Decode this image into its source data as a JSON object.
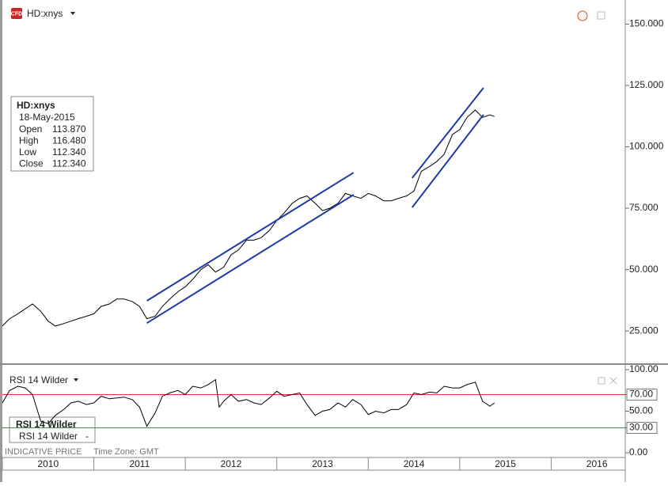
{
  "header": {
    "icon": "CFD",
    "symbol": "HD:xnys"
  },
  "info_box": {
    "title": "HD:xnys",
    "date": "18-May-2015",
    "rows": [
      [
        "Open",
        "113.870"
      ],
      [
        "High",
        "116.480"
      ],
      [
        "Low",
        "112.340"
      ],
      [
        "Close",
        "112.340"
      ]
    ]
  },
  "rsi_header": "RSI 14 Wilder",
  "rsi_box": {
    "title": "RSI 14 Wilder",
    "row": [
      "RSI 14 Wilder",
      "-"
    ]
  },
  "footer": {
    "price_note": "INDICATIVE PRICE",
    "time_zone": "Time Zone: GMT"
  },
  "chart_data": [
    {
      "type": "line",
      "color": "#000000",
      "x": [
        2010.0,
        2010.08,
        2010.17,
        2010.25,
        2010.33,
        2010.42,
        2010.5,
        2010.58,
        2010.67,
        2010.75,
        2010.83,
        2010.92,
        2011.0,
        2011.08,
        2011.17,
        2011.25,
        2011.33,
        2011.42,
        2011.5,
        2011.58,
        2011.67,
        2011.75,
        2011.83,
        2011.92,
        2012.0,
        2012.08,
        2012.17,
        2012.25,
        2012.33,
        2012.42,
        2012.5,
        2012.58,
        2012.67,
        2012.75,
        2012.83,
        2012.92,
        2013.0,
        2013.08,
        2013.17,
        2013.25,
        2013.33,
        2013.42,
        2013.5,
        2013.58,
        2013.67,
        2013.75,
        2013.83,
        2013.92,
        2014.0,
        2014.08,
        2014.17,
        2014.25,
        2014.33,
        2014.42,
        2014.5,
        2014.58,
        2014.67,
        2014.75,
        2014.83,
        2014.92,
        2015.0,
        2015.08,
        2015.17,
        2015.25,
        2015.33,
        2015.38
      ],
      "values": [
        27,
        30,
        32,
        34,
        36,
        33,
        29,
        27,
        28,
        29,
        30,
        31,
        32,
        35,
        36,
        38,
        38,
        37,
        35,
        30,
        31,
        35,
        38,
        41,
        43,
        46,
        50,
        52,
        49,
        51,
        56,
        58,
        62,
        62,
        63,
        66,
        70,
        73,
        77,
        79,
        80,
        77,
        74,
        75,
        77,
        81,
        80,
        79,
        81,
        80,
        78,
        78,
        79,
        80,
        82,
        90,
        92,
        94,
        97,
        105,
        107,
        112,
        115,
        112,
        113,
        112.34
      ],
      "xlim": [
        2010,
        2016.81
      ],
      "ylim": [
        11.5,
        159.8
      ],
      "yticks": [
        {
          "value": 25,
          "label": "25.000"
        },
        {
          "value": 50,
          "label": "50.000"
        },
        {
          "value": 75,
          "label": "75.000"
        },
        {
          "value": 100,
          "label": "100.000"
        },
        {
          "value": 125,
          "label": "125.000"
        },
        {
          "value": 150,
          "label": "150.000"
        }
      ],
      "trend_lines": {
        "color": "#1f3aa8",
        "lines": [
          {
            "x": [
              2011.58,
              2013.84
            ],
            "y": [
              37.3,
              89.5
            ]
          },
          {
            "x": [
              2011.58,
              2013.84
            ],
            "y": [
              28.2,
              80.5
            ]
          },
          {
            "x": [
              2014.48,
              2015.26
            ],
            "y": [
              87.3,
              124.0
            ]
          },
          {
            "x": [
              2014.48,
              2015.26
            ],
            "y": [
              75.3,
              113.1
            ]
          }
        ]
      }
    },
    {
      "type": "line",
      "color": "#000000",
      "x": [
        2010.0,
        2010.08,
        2010.17,
        2010.25,
        2010.33,
        2010.42,
        2010.5,
        2010.58,
        2010.67,
        2010.75,
        2010.83,
        2010.92,
        2011.0,
        2011.08,
        2011.17,
        2011.25,
        2011.33,
        2011.42,
        2011.5,
        2011.58,
        2011.67,
        2011.75,
        2011.83,
        2011.92,
        2012.0,
        2012.08,
        2012.17,
        2012.25,
        2012.33,
        2012.37,
        2012.42,
        2012.5,
        2012.58,
        2012.67,
        2012.75,
        2012.83,
        2012.92,
        2013.0,
        2013.08,
        2013.17,
        2013.25,
        2013.33,
        2013.42,
        2013.5,
        2013.58,
        2013.67,
        2013.75,
        2013.83,
        2013.92,
        2014.0,
        2014.08,
        2014.17,
        2014.25,
        2014.33,
        2014.42,
        2014.5,
        2014.58,
        2014.67,
        2014.75,
        2014.83,
        2014.92,
        2015.0,
        2015.08,
        2015.17,
        2015.25,
        2015.33,
        2015.38
      ],
      "values": [
        60,
        75,
        80,
        78,
        70,
        38,
        35,
        45,
        52,
        60,
        62,
        58,
        60,
        68,
        65,
        66,
        67,
        64,
        55,
        32,
        48,
        68,
        72,
        75,
        70,
        80,
        78,
        82,
        88,
        55,
        62,
        70,
        62,
        64,
        60,
        58,
        66,
        74,
        68,
        70,
        72,
        58,
        45,
        50,
        52,
        60,
        55,
        64,
        58,
        46,
        50,
        48,
        52,
        52,
        58,
        72,
        70,
        73,
        72,
        80,
        78,
        78,
        82,
        85,
        62,
        56,
        60
      ],
      "xlim": [
        2010,
        2016.81
      ],
      "ylim": [
        -5.7,
        104.8
      ],
      "yticks": [
        {
          "value": 0,
          "label": "0.00"
        },
        {
          "value": 30,
          "label": "30.00"
        },
        {
          "value": 50,
          "label": "50.00"
        },
        {
          "value": 70,
          "label": "70.00"
        },
        {
          "value": 100,
          "label": "100.00"
        }
      ],
      "ref_lines": [
        {
          "value": 70,
          "color": "#e03a3a"
        },
        {
          "value": 30,
          "color": "#3f8f3f"
        }
      ],
      "xticks": [
        2010,
        2011,
        2012,
        2013,
        2014,
        2015,
        2016
      ]
    }
  ]
}
